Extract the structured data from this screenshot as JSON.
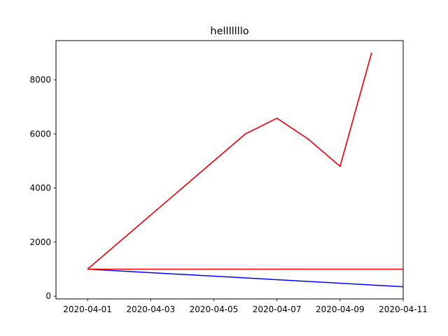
{
  "chart_data": {
    "type": "line",
    "title": "helllllllo",
    "xlabel": "",
    "ylabel": "",
    "xlim": [
      "2020-03-31",
      "2020-04-11"
    ],
    "ylim": [
      -100,
      9450
    ],
    "x_ticks": [
      "2020-04-01",
      "2020-04-03",
      "2020-04-05",
      "2020-04-07",
      "2020-04-09",
      "2020-04-11"
    ],
    "y_ticks": [
      0,
      2000,
      4000,
      6000,
      8000
    ],
    "grid": false,
    "legend": "none",
    "series": [
      {
        "color": "#0000ff",
        "points": [
          [
            "2020-04-01",
            1000
          ],
          [
            "2020-04-11",
            350
          ]
        ]
      },
      {
        "color": "#ff0000",
        "points": [
          [
            "2020-04-01",
            1000
          ],
          [
            "2020-04-11",
            1000
          ]
        ]
      },
      {
        "color": "#800080",
        "points": [
          [
            "2020-04-01",
            1000
          ],
          [
            "2020-04-06",
            6000
          ],
          [
            "2020-04-07",
            6580
          ],
          [
            "2020-04-08",
            5800
          ],
          [
            "2020-04-09",
            4800
          ],
          [
            "2020-04-10",
            9000
          ]
        ]
      },
      {
        "color": "#ff0000",
        "points": [
          [
            "2020-04-01",
            1000
          ],
          [
            "2020-04-06",
            6000
          ],
          [
            "2020-04-07",
            6580
          ],
          [
            "2020-04-08",
            5800
          ],
          [
            "2020-04-09",
            4800
          ],
          [
            "2020-04-10",
            9000
          ]
        ]
      }
    ]
  }
}
